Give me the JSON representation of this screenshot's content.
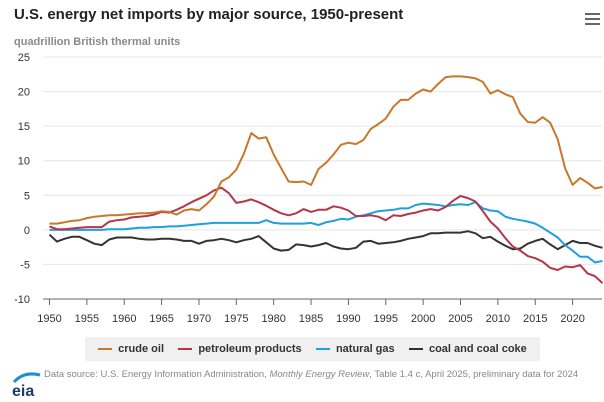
{
  "header": {
    "title": "U.S. energy net imports by major source, 1950-present",
    "subtitle": "quadrillion British thermal units",
    "menu_icon": "hamburger-menu-icon"
  },
  "footer": {
    "logo_text": "eia",
    "source_prefix": "Data source: U.S. Energy Information Administration, ",
    "source_italic": "Monthly Energy Review",
    "source_suffix": ", Table 1.4 c, April 2025, preliminary data for 2024"
  },
  "chart_data": {
    "type": "line",
    "title": "U.S. energy net imports by major source, 1950-present",
    "ylabel": "quadrillion British thermal units",
    "xlabel": "",
    "xlim": [
      1950,
      2024
    ],
    "ylim": [
      -10,
      25
    ],
    "y_ticks": [
      25,
      20,
      15,
      10,
      5,
      0,
      -5,
      -10
    ],
    "x_ticks": [
      1950,
      1955,
      1960,
      1965,
      1970,
      1975,
      1980,
      1985,
      1990,
      1995,
      2000,
      2005,
      2010,
      2015,
      2020
    ],
    "grid": "horizontal",
    "legend_position": "bottom",
    "x": [
      1950,
      1951,
      1952,
      1953,
      1954,
      1955,
      1956,
      1957,
      1958,
      1959,
      1960,
      1961,
      1962,
      1963,
      1964,
      1965,
      1966,
      1967,
      1968,
      1969,
      1970,
      1971,
      1972,
      1973,
      1974,
      1975,
      1976,
      1977,
      1978,
      1979,
      1980,
      1981,
      1982,
      1983,
      1984,
      1985,
      1986,
      1987,
      1988,
      1989,
      1990,
      1991,
      1992,
      1993,
      1994,
      1995,
      1996,
      1997,
      1998,
      1999,
      2000,
      2001,
      2002,
      2003,
      2004,
      2005,
      2006,
      2007,
      2008,
      2009,
      2010,
      2011,
      2012,
      2013,
      2014,
      2015,
      2016,
      2017,
      2018,
      2019,
      2020,
      2021,
      2022,
      2023,
      2024
    ],
    "series": [
      {
        "name": "crude oil",
        "color": "#c8782a",
        "values": [
          0.9,
          0.9,
          1.1,
          1.3,
          1.4,
          1.7,
          1.9,
          2.0,
          2.1,
          2.1,
          2.2,
          2.3,
          2.4,
          2.4,
          2.5,
          2.7,
          2.6,
          2.2,
          2.8,
          3.0,
          2.8,
          3.7,
          4.8,
          7.0,
          7.6,
          8.7,
          11.0,
          14.0,
          13.2,
          13.4,
          10.9,
          8.9,
          7.0,
          6.9,
          7.0,
          6.5,
          8.8,
          9.7,
          10.9,
          12.3,
          12.6,
          12.4,
          13.0,
          14.6,
          15.3,
          16.1,
          17.8,
          18.8,
          18.8,
          19.7,
          20.3,
          20.0,
          21.1,
          22.1,
          22.2,
          22.2,
          22.1,
          21.9,
          21.4,
          19.7,
          20.2,
          19.6,
          19.2,
          16.8,
          15.6,
          15.5,
          16.3,
          15.5,
          13.1,
          8.9,
          6.5,
          7.5,
          6.8,
          6.0,
          6.2
        ]
      },
      {
        "name": "petroleum products",
        "color": "#b5354a",
        "values": [
          0.5,
          0.1,
          0.1,
          0.2,
          0.3,
          0.4,
          0.4,
          0.4,
          1.2,
          1.4,
          1.5,
          1.8,
          1.9,
          2.0,
          2.2,
          2.6,
          2.5,
          2.9,
          3.4,
          4.0,
          4.5,
          5.0,
          5.7,
          6.1,
          5.3,
          3.9,
          4.1,
          4.4,
          4.0,
          3.5,
          2.9,
          2.4,
          2.1,
          2.4,
          3.0,
          2.6,
          2.9,
          2.9,
          3.4,
          3.2,
          2.8,
          2.0,
          2.0,
          2.1,
          1.9,
          1.4,
          2.1,
          2.0,
          2.3,
          2.5,
          2.8,
          3.0,
          2.8,
          3.3,
          4.2,
          4.9,
          4.6,
          4.1,
          2.7,
          1.2,
          0.2,
          -1.2,
          -2.4,
          -3.0,
          -3.8,
          -4.1,
          -4.6,
          -5.5,
          -5.8,
          -5.3,
          -5.4,
          -5.1,
          -6.3,
          -6.7,
          -7.7
        ]
      },
      {
        "name": "natural gas",
        "color": "#1f9fe0",
        "values": [
          0.0,
          0.0,
          0.0,
          0.0,
          0.0,
          0.0,
          0.0,
          0.0,
          0.1,
          0.1,
          0.1,
          0.2,
          0.3,
          0.3,
          0.4,
          0.4,
          0.5,
          0.5,
          0.6,
          0.7,
          0.8,
          0.9,
          1.0,
          1.0,
          1.0,
          1.0,
          1.0,
          1.0,
          1.0,
          1.4,
          1.0,
          0.9,
          0.9,
          0.9,
          0.9,
          1.0,
          0.7,
          1.1,
          1.3,
          1.6,
          1.5,
          1.9,
          2.1,
          2.4,
          2.7,
          2.8,
          2.9,
          3.1,
          3.1,
          3.6,
          3.8,
          3.7,
          3.6,
          3.4,
          3.6,
          3.7,
          3.6,
          4.0,
          3.1,
          2.8,
          2.7,
          1.9,
          1.6,
          1.4,
          1.2,
          0.9,
          0.3,
          -0.4,
          -1.1,
          -2.2,
          -3.0,
          -3.9,
          -3.9,
          -4.7,
          -4.5
        ]
      },
      {
        "name": "coal and coal coke",
        "color": "#333333",
        "values": [
          -0.7,
          -1.7,
          -1.3,
          -1.0,
          -1.0,
          -1.5,
          -2.0,
          -2.2,
          -1.4,
          -1.1,
          -1.1,
          -1.1,
          -1.3,
          -1.4,
          -1.4,
          -1.3,
          -1.3,
          -1.4,
          -1.6,
          -1.6,
          -2.0,
          -1.6,
          -1.5,
          -1.3,
          -1.5,
          -1.8,
          -1.5,
          -1.3,
          -0.9,
          -1.8,
          -2.7,
          -3.0,
          -2.9,
          -2.1,
          -2.2,
          -2.4,
          -2.2,
          -1.9,
          -2.4,
          -2.7,
          -2.8,
          -2.6,
          -1.7,
          -1.6,
          -2.0,
          -1.9,
          -1.8,
          -1.6,
          -1.3,
          -1.1,
          -0.9,
          -0.5,
          -0.5,
          -0.4,
          -0.4,
          -0.4,
          -0.2,
          -0.5,
          -1.2,
          -1.0,
          -1.7,
          -2.3,
          -2.8,
          -2.7,
          -2.0,
          -1.6,
          -1.3,
          -2.1,
          -2.8,
          -2.2,
          -1.6,
          -1.9,
          -1.9,
          -2.3,
          -2.6
        ]
      }
    ]
  }
}
